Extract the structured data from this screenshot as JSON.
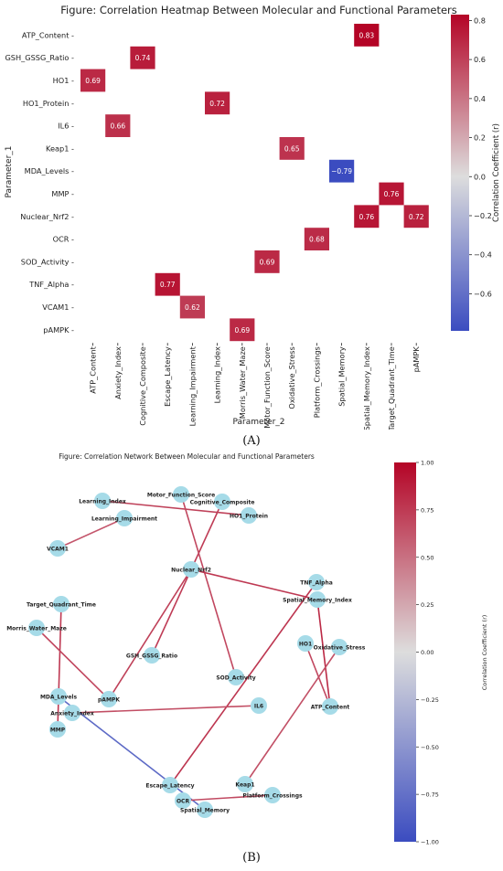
{
  "chart_data": [
    {
      "type": "heatmap",
      "title": "Figure: Correlation Heatmap Between Molecular and Functional Parameters",
      "xlabel": "Parameter_2",
      "ylabel": "Parameter_1",
      "rows": [
        "ATP_Content",
        "GSH_GSSG_Ratio",
        "HO1",
        "HO1_Protein",
        "IL6",
        "Keap1",
        "MDA_Levels",
        "MMP",
        "Nuclear_Nrf2",
        "OCR",
        "SOD_Activity",
        "TNF_Alpha",
        "VCAM1",
        "pAMPK"
      ],
      "cols": [
        "ATP_Content",
        "Anxiety_Index",
        "Cognitive_Composite",
        "Escape_Latency",
        "Learning_Impairment",
        "Learning_Index",
        "Morris_Water_Maze",
        "Motor_Function_Score",
        "Oxidative_Stress",
        "Platform_Crossings",
        "Spatial_Memory",
        "Spatial_Memory_Index",
        "Target_Quadrant_Time",
        "pAMPK"
      ],
      "cells": [
        {
          "row": "ATP_Content",
          "col": "Spatial_Memory_Index",
          "value": 0.83,
          "label": "0.83"
        },
        {
          "row": "GSH_GSSG_Ratio",
          "col": "Cognitive_Composite",
          "value": 0.74,
          "label": "0.74"
        },
        {
          "row": "HO1",
          "col": "ATP_Content",
          "value": 0.69,
          "label": "0.69"
        },
        {
          "row": "HO1_Protein",
          "col": "Learning_Index",
          "value": 0.72,
          "label": "0.72"
        },
        {
          "row": "IL6",
          "col": "Anxiety_Index",
          "value": 0.66,
          "label": "0.66"
        },
        {
          "row": "Keap1",
          "col": "Oxidative_Stress",
          "value": 0.65,
          "label": "0.65"
        },
        {
          "row": "MDA_Levels",
          "col": "Spatial_Memory",
          "value": -0.79,
          "label": "−0.79"
        },
        {
          "row": "MMP",
          "col": "Target_Quadrant_Time",
          "value": 0.76,
          "label": "0.76"
        },
        {
          "row": "Nuclear_Nrf2",
          "col": "Spatial_Memory_Index",
          "value": 0.76,
          "label": "0.76"
        },
        {
          "row": "Nuclear_Nrf2",
          "col": "pAMPK",
          "value": 0.72,
          "label": "0.72"
        },
        {
          "row": "OCR",
          "col": "Platform_Crossings",
          "value": 0.68,
          "label": "0.68"
        },
        {
          "row": "SOD_Activity",
          "col": "Motor_Function_Score",
          "value": 0.69,
          "label": "0.69"
        },
        {
          "row": "TNF_Alpha",
          "col": "Escape_Latency",
          "value": 0.77,
          "label": "0.77"
        },
        {
          "row": "VCAM1",
          "col": "Learning_Impairment",
          "value": 0.62,
          "label": "0.62"
        },
        {
          "row": "pAMPK",
          "col": "Morris_Water_Maze",
          "value": 0.69,
          "label": "0.69"
        }
      ],
      "colorbar": {
        "label": "Correlation Coefficient (r)",
        "range": [
          -0.79,
          0.83
        ],
        "ticks": [
          -0.6,
          -0.4,
          -0.2,
          0.0,
          0.2,
          0.4,
          0.6,
          0.8
        ],
        "tick_labels": [
          "−0.6",
          "−0.4",
          "−0.2",
          "0.0",
          "0.2",
          "0.4",
          "0.6",
          "0.8"
        ]
      },
      "colors": {
        "negative": "#3b4cc0",
        "neutral": "#dddddd",
        "positive": "#b40426"
      },
      "panel_label": "(A)"
    },
    {
      "type": "network",
      "title": "Figure: Correlation Network Between Molecular and Functional Parameters",
      "nodes": [
        {
          "id": "Learning_Index",
          "label": "Learning_Index"
        },
        {
          "id": "Motor_Function_Score",
          "label": "Motor_Function_Score"
        },
        {
          "id": "Cognitive_Composite",
          "label": "Cognitive_Composite"
        },
        {
          "id": "HO1_Protein",
          "label": "HO1_Protein"
        },
        {
          "id": "Learning_Impairment",
          "label": "Learning_Impairment"
        },
        {
          "id": "VCAM1",
          "label": "VCAM1"
        },
        {
          "id": "Nuclear_Nrf2",
          "label": "Nuclear_Nrf2"
        },
        {
          "id": "TNF_Alpha",
          "label": "TNF_Alpha"
        },
        {
          "id": "Spatial_Memory_Index",
          "label": "Spatial_Memory_Index"
        },
        {
          "id": "Target_Quadrant_Time",
          "label": "Target_Quadrant_Time"
        },
        {
          "id": "Morris_Water_Maze",
          "label": "Morris_Water_Maze"
        },
        {
          "id": "HO1",
          "label": "HO1"
        },
        {
          "id": "Oxidative_Stress",
          "label": "Oxidative_Stress"
        },
        {
          "id": "GSH_GSSG_Ratio",
          "label": "GSH_GSSG_Ratio"
        },
        {
          "id": "SOD_Activity",
          "label": "SOD_Activity"
        },
        {
          "id": "MDA_Levels",
          "label": "MDA_Levels"
        },
        {
          "id": "pAMPK",
          "label": "pAMPK"
        },
        {
          "id": "ATP_Content",
          "label": "ATP_Content"
        },
        {
          "id": "IL6",
          "label": "IL6"
        },
        {
          "id": "Anxiety_Index",
          "label": "Anxiety_Index"
        },
        {
          "id": "MMP",
          "label": "MMP"
        },
        {
          "id": "Keap1",
          "label": "Keap1"
        },
        {
          "id": "Escape_Latency",
          "label": "Escape_Latency"
        },
        {
          "id": "Platform_Crossings",
          "label": "Platform_Crossings"
        },
        {
          "id": "OCR",
          "label": "OCR"
        },
        {
          "id": "Spatial_Memory",
          "label": "Spatial_Memory"
        }
      ],
      "edges": [
        {
          "source": "HO1_Protein",
          "target": "Learning_Index",
          "r": 0.72
        },
        {
          "source": "GSH_GSSG_Ratio",
          "target": "Cognitive_Composite",
          "r": 0.74
        },
        {
          "source": "VCAM1",
          "target": "Learning_Impairment",
          "r": 0.62
        },
        {
          "source": "SOD_Activity",
          "target": "Motor_Function_Score",
          "r": 0.69
        },
        {
          "source": "Nuclear_Nrf2",
          "target": "Spatial_Memory_Index",
          "r": 0.76
        },
        {
          "source": "Nuclear_Nrf2",
          "target": "pAMPK",
          "r": 0.72
        },
        {
          "source": "MMP",
          "target": "Target_Quadrant_Time",
          "r": 0.76
        },
        {
          "source": "pAMPK",
          "target": "Morris_Water_Maze",
          "r": 0.69
        },
        {
          "source": "ATP_Content",
          "target": "Spatial_Memory_Index",
          "r": 0.83
        },
        {
          "source": "HO1",
          "target": "ATP_Content",
          "r": 0.69
        },
        {
          "source": "Keap1",
          "target": "Oxidative_Stress",
          "r": 0.65
        },
        {
          "source": "TNF_Alpha",
          "target": "Escape_Latency",
          "r": 0.77
        },
        {
          "source": "IL6",
          "target": "Anxiety_Index",
          "r": 0.66
        },
        {
          "source": "MDA_Levels",
          "target": "Spatial_Memory",
          "r": -0.79
        },
        {
          "source": "OCR",
          "target": "Platform_Crossings",
          "r": 0.68
        }
      ],
      "colorbar": {
        "label": "Correlation Coefficient (r)",
        "range": [
          -1.0,
          1.0
        ],
        "ticks": [
          -1.0,
          -0.75,
          -0.5,
          -0.25,
          0.0,
          0.25,
          0.5,
          0.75,
          1.0
        ],
        "tick_labels": [
          "−1.00",
          "−0.75",
          "−0.50",
          "−0.25",
          "0.00",
          "0.25",
          "0.50",
          "0.75",
          "1.00"
        ]
      },
      "colors": {
        "node": "#a6dbe8",
        "negative": "#3b4cc0",
        "positive": "#b40426"
      },
      "panel_label": "(B)"
    }
  ]
}
